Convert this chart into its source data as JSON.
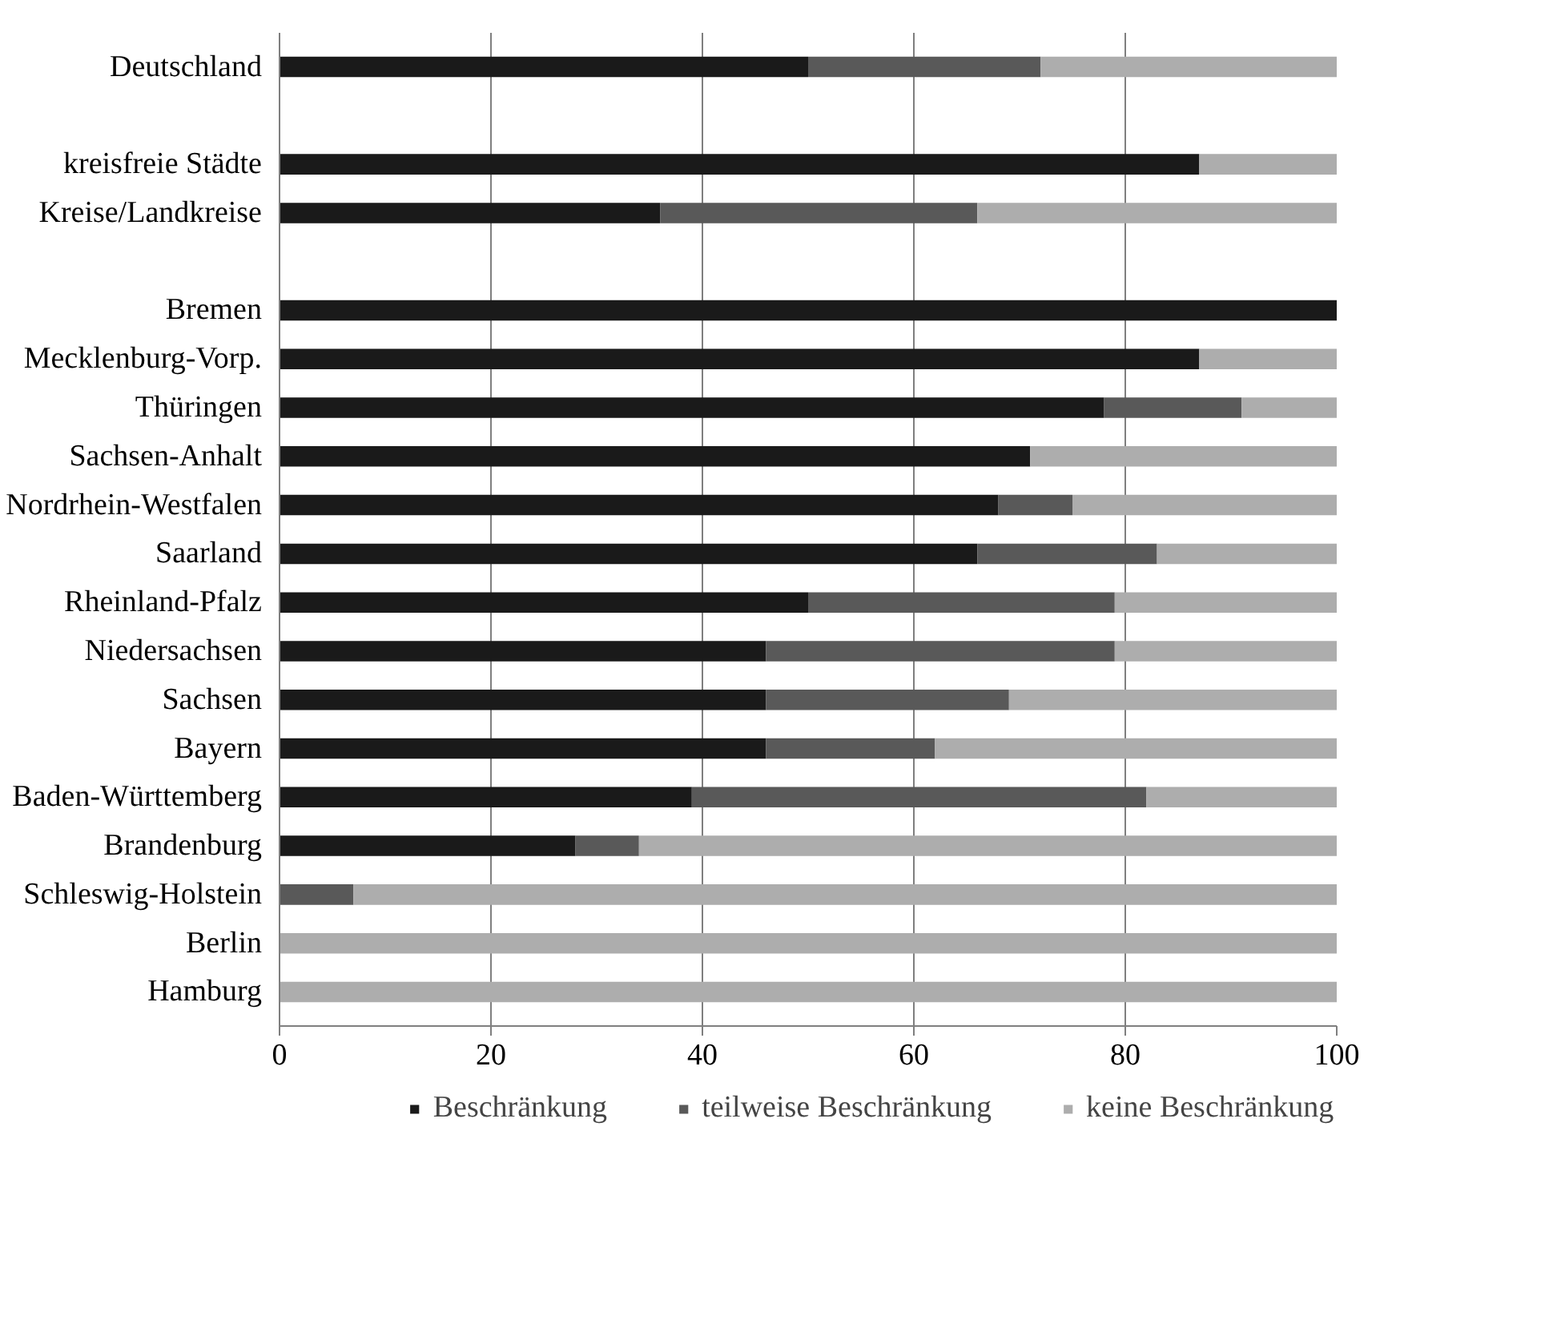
{
  "chart_data": {
    "type": "bar",
    "orientation": "horizontal",
    "stacked": true,
    "categories": [
      "Deutschland",
      null,
      "kreisfreie Städte",
      "Kreise/Landkreise",
      null,
      "Bremen",
      "Mecklenburg-Vorp.",
      "Thüringen",
      "Sachsen-Anhalt",
      "Nordrhein-Westfalen",
      "Saarland",
      "Rheinland-Pfalz",
      "Niedersachsen",
      "Sachsen",
      "Bayern",
      "Baden-Württemberg",
      "Brandenburg",
      "Schleswig-Holstein",
      "Berlin",
      "Hamburg"
    ],
    "series": [
      {
        "name": "Beschränkung",
        "color": "#1a1a1a",
        "values": [
          50,
          null,
          87,
          36,
          null,
          100,
          87,
          78,
          71,
          68,
          66,
          50,
          46,
          46,
          46,
          39,
          28,
          0,
          0,
          0
        ]
      },
      {
        "name": "teilweise Beschränkung",
        "color": "#595959",
        "values": [
          22,
          null,
          0,
          30,
          null,
          0,
          0,
          13,
          0,
          7,
          17,
          29,
          33,
          23,
          16,
          43,
          6,
          7,
          0,
          0
        ]
      },
      {
        "name": "keine Beschränkung",
        "color": "#adadad",
        "values": [
          28,
          null,
          13,
          34,
          null,
          0,
          13,
          9,
          29,
          25,
          17,
          21,
          21,
          31,
          38,
          18,
          66,
          93,
          100,
          100
        ]
      }
    ],
    "xlim": [
      0,
      100
    ],
    "xticks": [
      0,
      20,
      40,
      60,
      80,
      100
    ],
    "grid": "x",
    "legend": "bottom"
  }
}
